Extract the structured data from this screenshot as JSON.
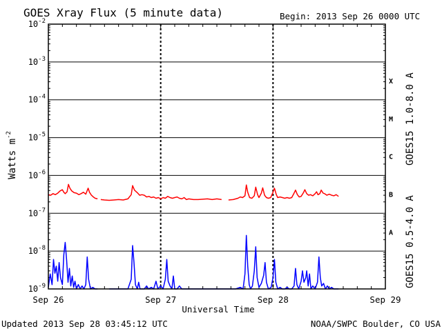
{
  "header": {
    "title": "GOES Xray Flux (5 minute data)",
    "begin": "Begin:  2013 Sep 26 0000 UTC"
  },
  "footer": {
    "updated": "Updated 2013 Sep 28 03:45:12 UTC",
    "credit": "NOAA/SWPC Boulder, CO USA"
  },
  "colors": {
    "long_channel": "#ff0000",
    "short_channel": "#0000ff",
    "axes": "#000000"
  },
  "chart_data": {
    "type": "line",
    "title": "GOES Xray Flux (5 minute data)",
    "xlabel": "Universal Time",
    "ylabel": "Watts m",
    "ylabel_superscript": "-2",
    "yscale": "log",
    "ylim": [
      1e-09,
      0.01
    ],
    "grid": true,
    "x_ticks": [
      "Sep 26",
      "Sep 27",
      "Sep 28",
      "Sep 29"
    ],
    "xlim_hours": [
      0,
      72
    ],
    "y_ticks": [
      {
        "base": "10",
        "exp": "-2",
        "value": 0.01
      },
      {
        "base": "10",
        "exp": "-3",
        "value": 0.001
      },
      {
        "base": "10",
        "exp": "-4",
        "value": 0.0001
      },
      {
        "base": "10",
        "exp": "-5",
        "value": 1e-05
      },
      {
        "base": "10",
        "exp": "-6",
        "value": 1e-06
      },
      {
        "base": "10",
        "exp": "-7",
        "value": 1e-07
      },
      {
        "base": "10",
        "exp": "-8",
        "value": 1e-08
      },
      {
        "base": "10",
        "exp": "-9",
        "value": 1e-09
      }
    ],
    "flare_classes": [
      {
        "label": "X",
        "value": 0.00032
      },
      {
        "label": "M",
        "value": 3.2e-05
      },
      {
        "label": "C",
        "value": 3.2e-06
      },
      {
        "label": "B",
        "value": 3.2e-07
      },
      {
        "label": "A",
        "value": 3.2e-08
      }
    ],
    "series": [
      {
        "name": "GOES15 1.0-8.0 A",
        "color": "#ff0000",
        "segments": [
          [
            [
              0,
              3.1e-07
            ],
            [
              0.5,
              3e-07
            ],
            [
              1,
              3.3e-07
            ],
            [
              1.5,
              3.1e-07
            ],
            [
              2,
              3.4e-07
            ],
            [
              2.5,
              3.9e-07
            ],
            [
              3,
              4.2e-07
            ],
            [
              3.3,
              3.6e-07
            ],
            [
              3.6,
              3.3e-07
            ],
            [
              4,
              3.7e-07
            ],
            [
              4.3,
              5.8e-07
            ],
            [
              4.6,
              4.6e-07
            ],
            [
              5,
              3.9e-07
            ],
            [
              5.5,
              3.5e-07
            ],
            [
              6,
              3.4e-07
            ],
            [
              6.5,
              3.1e-07
            ],
            [
              7,
              3.3e-07
            ],
            [
              7.5,
              3.6e-07
            ],
            [
              8,
              3.2e-07
            ],
            [
              8.5,
              4.6e-07
            ],
            [
              8.8,
              3.6e-07
            ],
            [
              9.2,
              3e-07
            ],
            [
              9.6,
              2.7e-07
            ],
            [
              10,
              2.5e-07
            ],
            [
              10.5,
              2.4e-07
            ]
          ],
          [
            [
              11.2,
              2.3e-07
            ],
            [
              12,
              2.25e-07
            ],
            [
              13,
              2.2e-07
            ],
            [
              14,
              2.25e-07
            ],
            [
              15,
              2.3e-07
            ],
            [
              16,
              2.25e-07
            ],
            [
              17,
              2.4e-07
            ],
            [
              17.7,
              3.1e-07
            ],
            [
              18,
              5.4e-07
            ],
            [
              18.4,
              4.1e-07
            ],
            [
              19,
              3.5e-07
            ],
            [
              19.5,
              3e-07
            ],
            [
              20,
              3.1e-07
            ],
            [
              20.5,
              3e-07
            ],
            [
              21,
              2.7e-07
            ],
            [
              21.5,
              2.8e-07
            ],
            [
              22,
              2.6e-07
            ],
            [
              22.5,
              2.7e-07
            ],
            [
              23,
              2.5e-07
            ],
            [
              23.5,
              2.6e-07
            ],
            [
              24,
              2.4e-07
            ],
            [
              24.5,
              2.6e-07
            ],
            [
              25,
              2.5e-07
            ],
            [
              25.5,
              2.8e-07
            ],
            [
              26,
              2.6e-07
            ],
            [
              26.5,
              2.5e-07
            ],
            [
              27,
              2.6e-07
            ],
            [
              27.5,
              2.7e-07
            ],
            [
              28,
              2.5e-07
            ],
            [
              28.5,
              2.4e-07
            ],
            [
              29,
              2.6e-07
            ],
            [
              29.5,
              2.3e-07
            ],
            [
              30,
              2.4e-07
            ],
            [
              31,
              2.3e-07
            ],
            [
              32,
              2.3e-07
            ],
            [
              33,
              2.35e-07
            ],
            [
              34,
              2.4e-07
            ],
            [
              35,
              2.3e-07
            ],
            [
              36,
              2.4e-07
            ],
            [
              37,
              2.3e-07
            ]
          ],
          [
            [
              38.5,
              2.25e-07
            ],
            [
              39.5,
              2.3e-07
            ],
            [
              40.5,
              2.5e-07
            ],
            [
              41,
              2.7e-07
            ],
            [
              41.5,
              2.6e-07
            ],
            [
              42,
              2.9e-07
            ],
            [
              42.3,
              5.6e-07
            ],
            [
              42.6,
              3.6e-07
            ],
            [
              43,
              2.6e-07
            ],
            [
              43.5,
              2.5e-07
            ],
            [
              44,
              2.9e-07
            ],
            [
              44.3,
              4.9e-07
            ],
            [
              44.7,
              3.1e-07
            ],
            [
              45,
              2.6e-07
            ],
            [
              45.5,
              3.4e-07
            ],
            [
              45.8,
              4.7e-07
            ],
            [
              46.2,
              3e-07
            ],
            [
              46.6,
              2.6e-07
            ],
            [
              47,
              2.5e-07
            ],
            [
              47.5,
              2.6e-07
            ],
            [
              48,
              3.6e-07
            ],
            [
              48.3,
              4.6e-07
            ],
            [
              48.7,
              3.1e-07
            ],
            [
              49,
              2.6e-07
            ],
            [
              49.5,
              2.7e-07
            ],
            [
              50,
              2.6e-07
            ],
            [
              50.5,
              2.5e-07
            ],
            [
              51,
              2.6e-07
            ],
            [
              51.5,
              2.5e-07
            ],
            [
              52,
              2.6e-07
            ],
            [
              52.5,
              3.4e-07
            ],
            [
              52.8,
              4.1e-07
            ],
            [
              53.2,
              3.1e-07
            ],
            [
              53.6,
              2.7e-07
            ],
            [
              54,
              2.8e-07
            ],
            [
              54.5,
              3.5e-07
            ],
            [
              54.8,
              4.2e-07
            ],
            [
              55.2,
              3.3e-07
            ],
            [
              55.6,
              3e-07
            ],
            [
              56,
              3.1e-07
            ],
            [
              56.5,
              2.9e-07
            ],
            [
              57,
              3.3e-07
            ],
            [
              57.3,
              3.7e-07
            ],
            [
              57.6,
              3.1e-07
            ],
            [
              58,
              3.3e-07
            ],
            [
              58.3,
              4.1e-07
            ],
            [
              58.7,
              3.4e-07
            ],
            [
              59,
              3.3e-07
            ],
            [
              59.5,
              3e-07
            ],
            [
              60,
              3.2e-07
            ],
            [
              60.5,
              3e-07
            ],
            [
              61,
              2.9e-07
            ],
            [
              61.5,
              3.1e-07
            ],
            [
              62,
              2.8e-07
            ]
          ]
        ]
      },
      {
        "name": "GOES15 0.5-4.0 A",
        "color": "#0000ff",
        "segments": [
          [
            [
              0,
              1.1e-09
            ],
            [
              0.4,
              2.5e-09
            ],
            [
              0.8,
              1.3e-09
            ],
            [
              1.1,
              6e-09
            ],
            [
              1.4,
              2.6e-09
            ],
            [
              1.7,
              4e-09
            ],
            [
              2,
              1.6e-09
            ],
            [
              2.3,
              5e-09
            ],
            [
              2.6,
              2e-09
            ],
            [
              3,
              1.3e-09
            ],
            [
              3.3,
              8e-09
            ],
            [
              3.6,
              1.7e-08
            ],
            [
              3.9,
              6e-09
            ],
            [
              4.2,
              1.5e-09
            ],
            [
              4.5,
              3.5e-09
            ],
            [
              4.8,
              1.2e-09
            ],
            [
              5.1,
              2.2e-09
            ],
            [
              5.4,
              1.1e-09
            ],
            [
              5.7,
              1.6e-09
            ],
            [
              6,
              1e-09
            ],
            [
              6.4,
              1.3e-09
            ],
            [
              6.8,
              1e-09
            ],
            [
              7.2,
              1.2e-09
            ],
            [
              7.6,
              1e-09
            ],
            [
              8,
              1.3e-09
            ],
            [
              8.3,
              7e-09
            ],
            [
              8.6,
              1.8e-09
            ],
            [
              9,
              1e-09
            ],
            [
              9.5,
              1.1e-09
            ],
            [
              10,
              1e-09
            ],
            [
              10.5,
              1e-09
            ]
          ],
          [
            [
              13,
              1e-09
            ],
            [
              14,
              1e-09
            ],
            [
              15,
              1e-09
            ],
            [
              16,
              1e-09
            ],
            [
              17,
              1e-09
            ],
            [
              17.7,
              1.8e-09
            ],
            [
              18,
              1.4e-08
            ],
            [
              18.3,
              5e-09
            ],
            [
              18.6,
              1.3e-09
            ],
            [
              19,
              1e-09
            ],
            [
              19.3,
              1.5e-09
            ],
            [
              19.6,
              1e-09
            ],
            [
              20,
              1e-09
            ],
            [
              20.5,
              1e-09
            ],
            [
              21,
              1.2e-09
            ],
            [
              21.4,
              1e-09
            ],
            [
              22,
              1.1e-09
            ],
            [
              22.5,
              1e-09
            ],
            [
              23,
              1.6e-09
            ],
            [
              23.4,
              1e-09
            ],
            [
              24,
              1.2e-09
            ],
            [
              24.5,
              1e-09
            ],
            [
              25,
              1.8e-09
            ],
            [
              25.3,
              6e-09
            ],
            [
              25.6,
              1.6e-09
            ],
            [
              26,
              1.2e-09
            ],
            [
              26.4,
              1e-09
            ],
            [
              26.7,
              2.2e-09
            ],
            [
              27,
              1e-09
            ],
            [
              27.5,
              1e-09
            ],
            [
              28,
              1.2e-09
            ],
            [
              28.5,
              1e-09
            ],
            [
              29,
              1e-09
            ],
            [
              30,
              1e-09
            ],
            [
              31,
              1e-09
            ],
            [
              32,
              1e-09
            ],
            [
              33,
              1e-09
            ],
            [
              34,
              1e-09
            ],
            [
              35,
              1e-09
            ],
            [
              36,
              1e-09
            ],
            [
              37,
              1e-09
            ],
            [
              38,
              1e-09
            ],
            [
              39,
              1e-09
            ],
            [
              40,
              1e-09
            ],
            [
              41,
              1.1e-09
            ],
            [
              41.6,
              1e-09
            ],
            [
              42,
              2.5e-09
            ],
            [
              42.3,
              2.6e-08
            ],
            [
              42.6,
              4e-09
            ],
            [
              42.9,
              1.3e-09
            ],
            [
              43.2,
              1e-09
            ],
            [
              43.6,
              1.2e-09
            ],
            [
              44,
              3e-09
            ],
            [
              44.3,
              1.3e-08
            ],
            [
              44.6,
              2e-09
            ],
            [
              45,
              1.1e-09
            ],
            [
              45.5,
              1.4e-09
            ],
            [
              46,
              2.3e-09
            ],
            [
              46.3,
              5e-09
            ],
            [
              46.6,
              1.5e-09
            ],
            [
              47,
              1e-09
            ],
            [
              47.6,
              1.1e-09
            ],
            [
              48,
              2e-09
            ],
            [
              48.3,
              6e-09
            ],
            [
              48.6,
              1.5e-09
            ],
            [
              49,
              1e-09
            ],
            [
              49.5,
              1.1e-09
            ],
            [
              50,
              1e-09
            ],
            [
              50.5,
              1e-09
            ],
            [
              51,
              1.1e-09
            ],
            [
              51.5,
              1e-09
            ],
            [
              52,
              1e-09
            ],
            [
              52.5,
              1.2e-09
            ],
            [
              52.8,
              3.5e-09
            ],
            [
              53.1,
              1.3e-09
            ],
            [
              53.5,
              1e-09
            ],
            [
              54,
              1.6e-09
            ],
            [
              54.3,
              3e-09
            ],
            [
              54.6,
              1.5e-09
            ],
            [
              55,
              2e-09
            ],
            [
              55.2,
              3e-09
            ],
            [
              55.5,
              1.2e-09
            ],
            [
              55.8,
              2.5e-09
            ],
            [
              56.1,
              1e-09
            ],
            [
              56.5,
              1.2e-09
            ],
            [
              57,
              1e-09
            ],
            [
              57.5,
              1.5e-09
            ],
            [
              57.8,
              7e-09
            ],
            [
              58.1,
              2e-09
            ],
            [
              58.4,
              1.2e-09
            ],
            [
              58.8,
              1.4e-09
            ],
            [
              59.2,
              1e-09
            ],
            [
              59.6,
              1.2e-09
            ],
            [
              60,
              1e-09
            ],
            [
              60.5,
              1.1e-09
            ],
            [
              61,
              1e-09
            ],
            [
              61.5,
              1e-09
            ],
            [
              62,
              1e-09
            ]
          ]
        ]
      }
    ]
  }
}
